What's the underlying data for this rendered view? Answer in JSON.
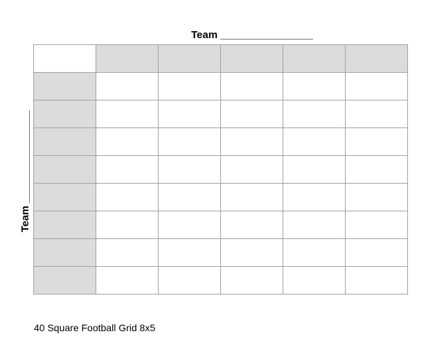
{
  "top_label": "Team ________________",
  "side_label": "Team ________________",
  "grid": {
    "rows": 8,
    "columns": 5,
    "header_color": "#dcdcdc",
    "line_color": "#a0a0a0"
  },
  "footer": "40 Square Football Grid 8x5"
}
